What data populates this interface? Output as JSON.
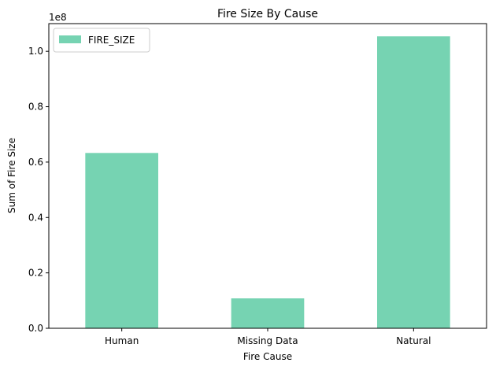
{
  "chart_data": {
    "type": "bar",
    "title": "Fire Size By Cause",
    "xlabel": "Fire Cause",
    "ylabel": "Sum of Fire Size",
    "y_offset_text": "1e8",
    "categories": [
      "Human",
      "Missing Data",
      "Natural"
    ],
    "series": [
      {
        "name": "FIRE_SIZE",
        "values": [
          63300000,
          10800000,
          105400000
        ]
      }
    ],
    "ylim": [
      0,
      110000000
    ],
    "y_scale_factor": 100000000,
    "yticks": [
      0.0,
      0.2,
      0.4,
      0.6,
      0.8,
      1.0
    ],
    "ytick_labels": [
      "0.0",
      "0.2",
      "0.4",
      "0.6",
      "0.8",
      "1.0"
    ],
    "grid": false,
    "legend": "top-left",
    "bar_color": "#76d3b2"
  }
}
